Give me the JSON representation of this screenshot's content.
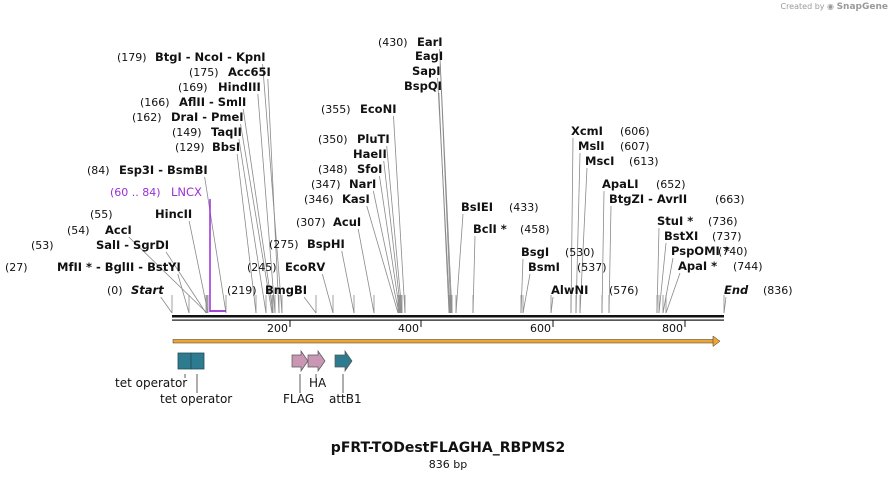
{
  "app": {
    "watermark_prefix": "Created by",
    "watermark_brand": "SnapGene"
  },
  "plasmid": {
    "name": "pFRT-TODestFLAGHA_RBPMS2",
    "length_label": "836 bp"
  },
  "colors": {
    "label": "#111111",
    "leader": "#8a8a8a",
    "lncx": "#9b2fd6",
    "arrow": "#f0a532",
    "operator": "#2e7b8f",
    "tag": "#c996b3",
    "attb": "#2e7b8f"
  },
  "sites": [
    {
      "id": "start",
      "pos": "(0)",
      "name": "Start",
      "type": "end"
    },
    {
      "id": "mfli",
      "pos": "(27)",
      "name": "MfII *  -  BglII  -  BstYI"
    },
    {
      "id": "sali",
      "pos": "(53)",
      "name": "SalI  -  SgrDI"
    },
    {
      "id": "acci",
      "pos": "(54)",
      "name": "AccI"
    },
    {
      "id": "hincii",
      "pos": "(55)",
      "name": "HincII"
    },
    {
      "id": "lncx",
      "pos": "(60 .. 84)",
      "name": "LNCX",
      "type": "feature"
    },
    {
      "id": "esp3i",
      "pos": "(84)",
      "name": "Esp3I  -  BsmBI"
    },
    {
      "id": "bbsi",
      "pos": "(129)",
      "name": "BbsI"
    },
    {
      "id": "taqii",
      "pos": "(149)",
      "name": "TaqII"
    },
    {
      "id": "drai",
      "pos": "(162)",
      "name": "DraI  -  PmeI"
    },
    {
      "id": "aflii",
      "pos": "(166)",
      "name": "AflII  -  SmlI"
    },
    {
      "id": "hindiii",
      "pos": "(169)",
      "name": "HindIII"
    },
    {
      "id": "acc65i",
      "pos": "(175)",
      "name": "Acc65I"
    },
    {
      "id": "btgi",
      "pos": "(179)",
      "name": "BtgI  -  NcoI  -  KpnI"
    },
    {
      "id": "bmgbi",
      "pos": "(219)",
      "name": "BmgBI"
    },
    {
      "id": "ecorv",
      "pos": "(245)",
      "name": "EcoRV"
    },
    {
      "id": "bsphi",
      "pos": "(275)",
      "name": "BspHI"
    },
    {
      "id": "acui",
      "pos": "(307)",
      "name": "AcuI"
    },
    {
      "id": "kasi",
      "pos": "(346)",
      "name": "KasI"
    },
    {
      "id": "nari",
      "pos": "(347)",
      "name": "NarI"
    },
    {
      "id": "sfoi",
      "pos": "(348)",
      "name": "SfoI"
    },
    {
      "id": "haeii",
      "pos": "",
      "name": "HaeII"
    },
    {
      "id": "pluti",
      "pos": "(350)",
      "name": "PluTI"
    },
    {
      "id": "econi",
      "pos": "(355)",
      "name": "EcoNI"
    },
    {
      "id": "bspqi",
      "pos": "",
      "name": "BspQI"
    },
    {
      "id": "sapi",
      "pos": "",
      "name": "SapI"
    },
    {
      "id": "eagi",
      "pos": "",
      "name": "EagI"
    },
    {
      "id": "eari",
      "pos": "(430)",
      "name": "EarI"
    },
    {
      "id": "bslei",
      "pos": "(433)",
      "name": "BsIEI"
    },
    {
      "id": "bcli",
      "pos": "(458)",
      "name": "BclI *"
    },
    {
      "id": "bsgi",
      "pos": "(530)",
      "name": "BsgI"
    },
    {
      "id": "bsmi",
      "pos": "(537)",
      "name": "BsmI"
    },
    {
      "id": "alwni",
      "pos": "(576)",
      "name": "AlwNI"
    },
    {
      "id": "xcmi",
      "pos": "(606)",
      "name": "XcmI"
    },
    {
      "id": "msli",
      "pos": "(607)",
      "name": "MslI"
    },
    {
      "id": "msci",
      "pos": "(613)",
      "name": "MscI"
    },
    {
      "id": "apali",
      "pos": "(652)",
      "name": "ApaLI"
    },
    {
      "id": "btgzi",
      "pos": "(663)",
      "name": "BtgZI  -  AvrII"
    },
    {
      "id": "stui",
      "pos": "(736)",
      "name": "StuI *"
    },
    {
      "id": "bstxi",
      "pos": "(737)",
      "name": "BstXI"
    },
    {
      "id": "pspomi",
      "pos": "(740)",
      "name": "PspOMI *"
    },
    {
      "id": "apai",
      "pos": "(744)",
      "name": "ApaI *"
    },
    {
      "id": "end",
      "pos": "(836)",
      "name": "End",
      "type": "end"
    }
  ],
  "ruler": {
    "ticks": [
      "200",
      "400",
      "600",
      "800"
    ]
  },
  "features": [
    {
      "id": "tetop1",
      "label": "tet operator",
      "kind": "operator"
    },
    {
      "id": "tetop2",
      "label": "tet operator",
      "kind": "operator"
    },
    {
      "id": "flag",
      "label": "FLAG",
      "kind": "tag"
    },
    {
      "id": "ha",
      "label": "HA",
      "kind": "tag"
    },
    {
      "id": "attb1",
      "label": "attB1",
      "kind": "attb"
    }
  ]
}
